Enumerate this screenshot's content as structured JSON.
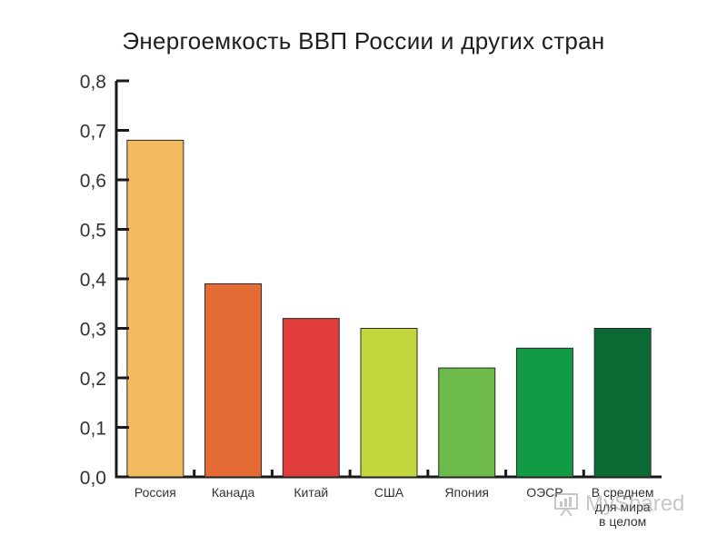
{
  "chart_data": {
    "type": "bar",
    "title": "Энергоемкость ВВП России и других стран",
    "categories": [
      "Россия",
      "Канада",
      "Китай",
      "США",
      "Япония",
      "ОЭСР",
      "В среднем для мира в целом"
    ],
    "category_label_lines": [
      [
        "Россия"
      ],
      [
        "Канада"
      ],
      [
        "Китай"
      ],
      [
        "США"
      ],
      [
        "Япония"
      ],
      [
        "ОЭСР"
      ],
      [
        "В среднем",
        "для мира",
        "в целом"
      ]
    ],
    "values": [
      0.68,
      0.39,
      0.32,
      0.3,
      0.22,
      0.26,
      0.3
    ],
    "colors": [
      "#f3bb5f",
      "#e46b33",
      "#e13c3c",
      "#c3d63e",
      "#6cba4a",
      "#129a44",
      "#0c6a34"
    ],
    "ylim": [
      0,
      0.8
    ],
    "yticks": [
      "0,0",
      "0,1",
      "0,2",
      "0,3",
      "0,4",
      "0,5",
      "0,6",
      "0,7",
      "0,8"
    ],
    "xlabel": "",
    "ylabel": "",
    "grid": false
  },
  "watermark": {
    "text": "MyShared",
    "icon": "presentation-board-icon"
  }
}
